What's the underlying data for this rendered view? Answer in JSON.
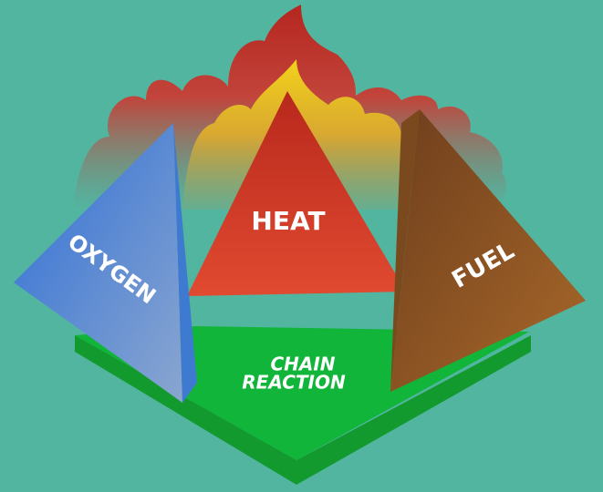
{
  "nodes": [
    {
      "label": "HEAT"
    },
    {
      "label": "OXYGEN"
    },
    {
      "label": "FUEL"
    },
    {
      "label_lines": [
        "CHAIN",
        "REACTION"
      ]
    }
  ]
}
